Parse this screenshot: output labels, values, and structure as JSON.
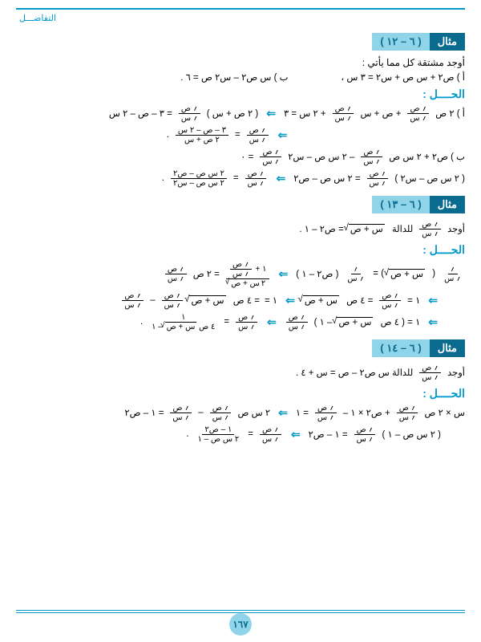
{
  "header": {
    "chapter": "التفاضـــل"
  },
  "ex12": {
    "dark": "مثال",
    "light": "( ٦ – ١٢ )",
    "prompt": "أوجد مشتقة كل مما يأتي :",
    "item_a": "أ )  ص٢ + س ص + س٢ = ٣ س   ،",
    "item_b": "ب )  س ص٢ – س٢ ص = ٦  .",
    "sol": "الحــــل :",
    "line_a1_pre": "أ )  ٢ ص",
    "line_a1_mid": "+ ص + س",
    "line_a1_tail": "+ ٢ س = ٣",
    "line_a1_rhs": "( ٢ ص + س )",
    "line_a1_eq": "= ٣ – ص – ٢ س",
    "line_a2_lhs": "=",
    "frac_a2_num": "٣ – ص – ٢ س",
    "frac_a2_den": "٢ ص + س",
    "dot": ".",
    "line_b1_pre": "ب )  ص٢ + ٢ س ص",
    "line_b1_mid": "– ٢ س ص – س٢",
    "line_b1_eq": "= ٠",
    "line_b2_lhs": "( ٢ س ص – س٢ )",
    "line_b2_mid": "= ٢ س ص – ص٢",
    "line_b2_frac_num": "٢ س ص – ص٢",
    "line_b2_frac_den": "٢ س ص – س٢"
  },
  "ex13": {
    "dark": "مثال",
    "light": "( ٦ – ١٣ )",
    "prompt_pre": "أوجد",
    "prompt_post": "للدالة",
    "prompt_eq": "= ص٢ – ١   .",
    "sqrt_expr": "س + ص",
    "sol": "الحــــل :",
    "l1_lhs": "(",
    "l1_mid": ") =",
    "l1_rhs": "( ص٢ – ١ )",
    "l1_far": "= ٢ ص",
    "frac_half_num": "١ +",
    "frac_half_den": "٢",
    "l2_a": "١ =",
    "l2_b": "= ٤ ص",
    "l2_c": "س + ص",
    "l2_minus": "–",
    "l3_a": "١ = ( ٤ ص",
    "l3_b": "– ١ )",
    "l3_frac_num": "١",
    "l3_frac_den": "٤ ص",
    "l3_frac_den2": "– ١",
    "eq": "="
  },
  "ex14": {
    "dark": "مثال",
    "light": "( ٦ – ١٤ )",
    "prompt_pre": "أوجد",
    "prompt_mid": "للدالة  س ص٢ – ص = س + ٤   .",
    "sol": "الحــــل :",
    "l1_a": "س × ٢ ص",
    "l1_b": "+ ص٢ × ١ –",
    "l1_c": "= ١",
    "l1_d": "٢ س ص",
    "l1_e": "–",
    "l1_f": "= ١ – ص٢",
    "l2_a": "( ٢ س ص – ١ )",
    "l2_b": "= ١ – ص٢",
    "l2_frac_num": "١ – ص٢",
    "l2_frac_den": "٢ س ص – ١",
    "eq": "="
  },
  "dyds": {
    "num": "؍ ص",
    "den": "؍ س"
  },
  "page_number": "١٦٧"
}
